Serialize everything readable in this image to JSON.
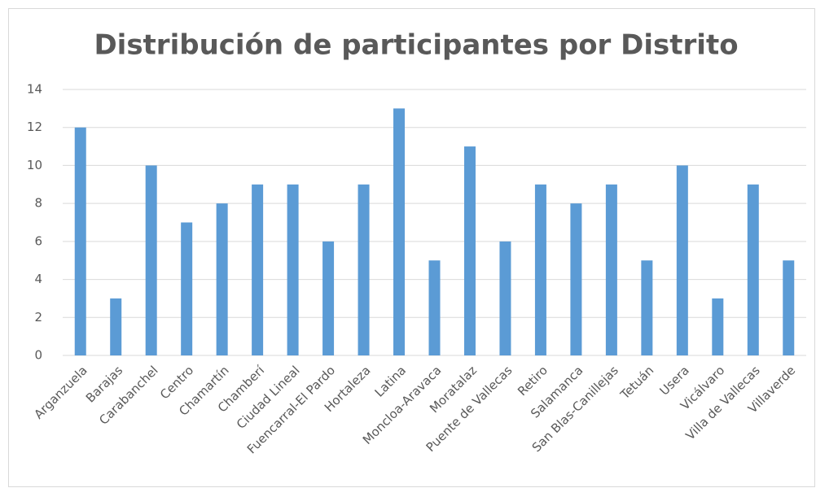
{
  "chart_data": {
    "type": "bar",
    "title": "Distribución de participantes por Distrito",
    "categories": [
      "Arganzuela",
      "Barajas",
      "Carabanchel",
      "Centro",
      "Chamartín",
      "Chamberí",
      "Ciudad Lineal",
      "Fuencarral-El Pardo",
      "Hortaleza",
      "Latina",
      "Moncloa-Aravaca",
      "Moratalaz",
      "Puente de Vallecas",
      "Retiro",
      "Salamanca",
      "San Blas-Canillejas",
      "Tetuán",
      "Usera",
      "Vicálvaro",
      "Villa de Vallecas",
      "Villaverde"
    ],
    "values": [
      12,
      3,
      10,
      7,
      8,
      9,
      9,
      6,
      9,
      13,
      5,
      11,
      6,
      9,
      8,
      9,
      5,
      10,
      3,
      9,
      5
    ],
    "color": "#5b9bd5",
    "ylim": [
      0,
      14
    ],
    "yticks": [
      0,
      2,
      4,
      6,
      8,
      10,
      12,
      14
    ],
    "grid": true
  }
}
